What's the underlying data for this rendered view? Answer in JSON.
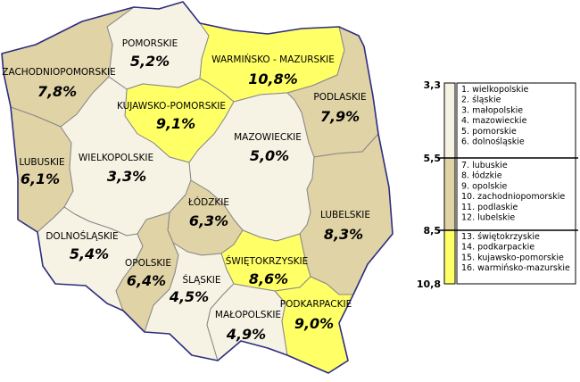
{
  "colors": {
    "low": "#f7f3e4",
    "mid": "#e0d3a6",
    "high": "#ffff66",
    "border": "#2d2d80",
    "inner": "#888888"
  },
  "voivodeships": [
    {
      "id": "pomorskie",
      "name": "POMORSKIE",
      "value": "5,2%",
      "cls": "low"
    },
    {
      "id": "zachodniopomorskie",
      "name": "ZACHODNIOPOMORSKIE",
      "value": "7,8%",
      "cls": "mid"
    },
    {
      "id": "warminsko-mazurskie",
      "name": "WARMIŃSKO - MAZURSKIE",
      "value": "10,8%",
      "cls": "high"
    },
    {
      "id": "podlaskie",
      "name": "PODLASKIE",
      "value": "7,9%",
      "cls": "mid"
    },
    {
      "id": "kujawsko-pomorskie",
      "name": "KUJAWSKO-POMORSKIE",
      "value": "9,1%",
      "cls": "high"
    },
    {
      "id": "lubuskie",
      "name": "LUBUSKIE",
      "value": "6,1%",
      "cls": "mid"
    },
    {
      "id": "wielkopolskie",
      "name": "WIELKOPOLSKIE",
      "value": "3,3%",
      "cls": "low"
    },
    {
      "id": "mazowieckie",
      "name": "MAZOWIECKIE",
      "value": "5,0%",
      "cls": "low"
    },
    {
      "id": "lodzkie",
      "name": "ŁÓDZKIE",
      "value": "6,3%",
      "cls": "mid"
    },
    {
      "id": "dolnoslaskie",
      "name": "DOLNOŚLĄSKIE",
      "value": "5,4%",
      "cls": "low"
    },
    {
      "id": "lubelskie",
      "name": "LUBELSKIE",
      "value": "8,3%",
      "cls": "mid"
    },
    {
      "id": "swietokrzyskie",
      "name": "ŚWIĘTOKRZYSKIE",
      "value": "8,6%",
      "cls": "high"
    },
    {
      "id": "opolskie",
      "name": "OPOLSKIE",
      "value": "6,4%",
      "cls": "mid"
    },
    {
      "id": "slaskie",
      "name": "ŚLĄSKIE",
      "value": "4,5%",
      "cls": "low"
    },
    {
      "id": "malopolskie",
      "name": "MAŁOPOLSKIE",
      "value": "4,9%",
      "cls": "low"
    },
    {
      "id": "podkarpackie",
      "name": "PODKARPACKIE",
      "value": "9,0%",
      "cls": "high"
    }
  ],
  "legend": {
    "ticks": [
      "3,3",
      "5,5",
      "8,5",
      "10,8"
    ],
    "groups": [
      {
        "cls": "low",
        "items": [
          "1. wielkopolskie",
          "2. śląskie",
          "3. małopolskie",
          "4. mazowieckie",
          "5. pomorskie",
          "6. dolnośląskie"
        ]
      },
      {
        "cls": "mid",
        "items": [
          "7. lubuskie",
          "8. łódzkie",
          "9. opolskie",
          "10. zachodniopomorskie",
          "11. podlaskie",
          "12. lubelskie"
        ]
      },
      {
        "cls": "high",
        "items": [
          "13. świętokrzyskie",
          "14. podkarpackie",
          "15. kujawsko-pomorskie",
          "16. warmińsko-mazurskie"
        ]
      }
    ],
    "highlight_color": "#e03030"
  }
}
